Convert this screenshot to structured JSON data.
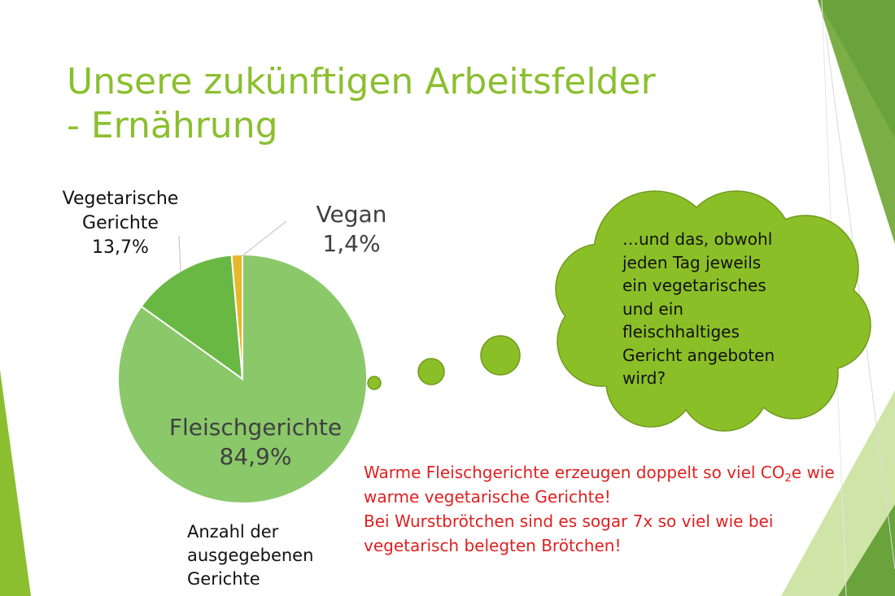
{
  "slide": {
    "title_line1": "Unsere zukünftigen Arbeitsfelder",
    "title_line2": "- Ernährung",
    "accent_green": "#8bbf2f",
    "note_color": "#e02020"
  },
  "chart_data": {
    "type": "pie",
    "slices": [
      {
        "label_lines": [
          "Fleischgerichte"
        ],
        "value_text": "84,9%",
        "value": 84.9,
        "color": "#8ac86a"
      },
      {
        "label_lines": [
          "Vegetarische",
          "Gerichte"
        ],
        "value_text": "13,7%",
        "value": 13.7,
        "color": "#69b843"
      },
      {
        "label_lines": [
          "Vegan"
        ],
        "value_text": "1,4%",
        "value": 1.4,
        "color": "#e8b72a"
      }
    ],
    "caption_lines": [
      "Anzahl der",
      "ausgegebenen",
      "Gerichte"
    ]
  },
  "thought_bubble": {
    "lines": [
      "…und das, obwohl",
      "jeden Tag jeweils",
      "ein vegetarisches",
      "und ein",
      "fleischhaltiges",
      "Gericht angeboten",
      "wird?"
    ],
    "color": "#8bbf27"
  },
  "note": {
    "line1_pre": "Warme Fleischgerichte erzeugen doppelt so viel CO",
    "line1_sub": "2",
    "line1_post": "e wie",
    "line2": "warme vegetarische Gerichte!",
    "line3": "Bei Wurstbrötchen sind es sogar 7x so viel wie bei",
    "line4": "vegetarisch belegten Brötchen!"
  }
}
